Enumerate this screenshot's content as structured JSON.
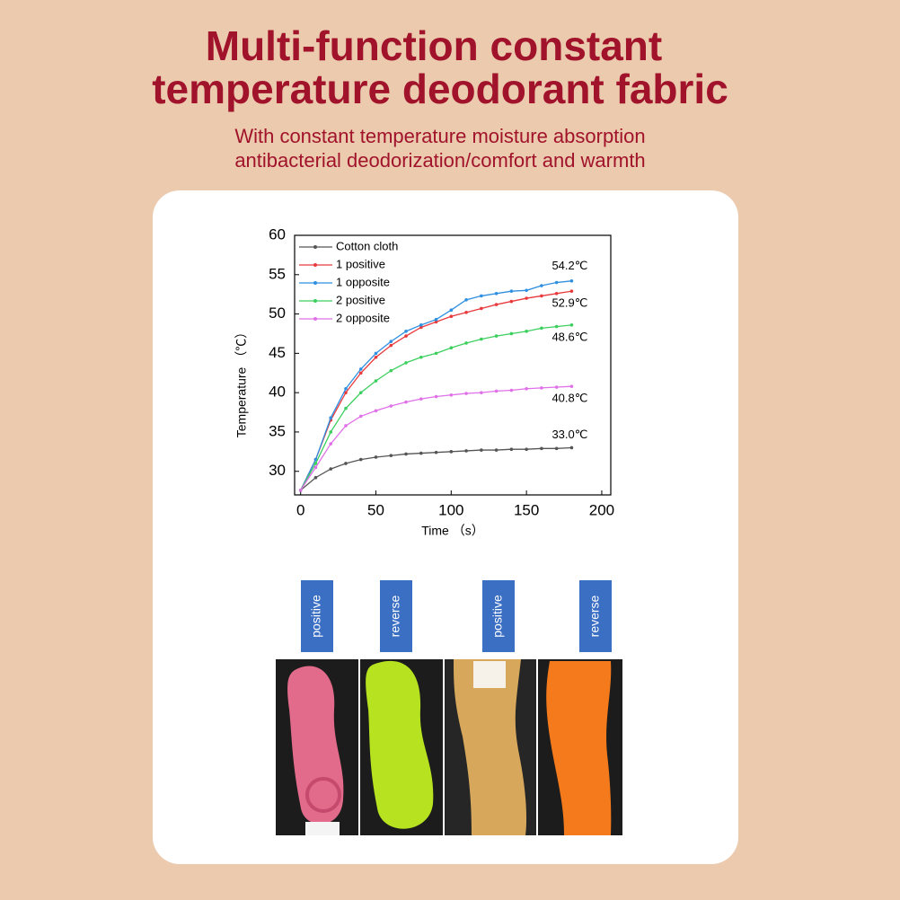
{
  "header": {
    "title": [
      "Multi-function constant",
      "temperature deodorant fabric"
    ],
    "subtitle": [
      "With constant temperature moisture absorption",
      "antibacterial deodorization/comfort and warmth"
    ]
  },
  "chart_data": {
    "type": "line",
    "x_label": "Time （s）",
    "y_label": "Temperature （℃）",
    "x": [
      0,
      10,
      20,
      30,
      40,
      50,
      60,
      70,
      80,
      90,
      100,
      110,
      120,
      130,
      140,
      150,
      160,
      170,
      180
    ],
    "series": [
      {
        "name": "Cotton cloth",
        "color": "#555555",
        "end_label": "33.0℃",
        "values": [
          27.6,
          29.2,
          30.3,
          31.0,
          31.5,
          31.8,
          32.0,
          32.2,
          32.3,
          32.4,
          32.5,
          32.6,
          32.7,
          32.7,
          32.8,
          32.8,
          32.9,
          32.9,
          33.0
        ]
      },
      {
        "name": "1 positive",
        "color": "#e8393c",
        "end_label": "52.9℃",
        "values": [
          27.6,
          31.5,
          36.5,
          40.0,
          42.5,
          44.5,
          46.0,
          47.2,
          48.3,
          49.0,
          49.7,
          50.2,
          50.7,
          51.2,
          51.6,
          52.0,
          52.3,
          52.6,
          52.9
        ]
      },
      {
        "name": "1 opposite",
        "color": "#2f8fe0",
        "end_label": "54.2℃",
        "values": [
          27.6,
          31.5,
          36.8,
          40.5,
          43.0,
          45.0,
          46.5,
          47.8,
          48.6,
          49.3,
          50.5,
          51.8,
          52.3,
          52.6,
          52.9,
          53.0,
          53.6,
          54.0,
          54.2
        ]
      },
      {
        "name": "2 positive",
        "color": "#3ccf5e",
        "end_label": "48.6℃",
        "values": [
          27.6,
          31.0,
          35.0,
          38.0,
          40.0,
          41.5,
          42.8,
          43.8,
          44.5,
          45.0,
          45.7,
          46.3,
          46.8,
          47.2,
          47.5,
          47.8,
          48.2,
          48.4,
          48.6
        ]
      },
      {
        "name": "2 opposite",
        "color": "#e070e8",
        "end_label": "40.8℃",
        "values": [
          27.6,
          30.5,
          33.5,
          35.8,
          37.0,
          37.7,
          38.3,
          38.8,
          39.2,
          39.5,
          39.7,
          39.9,
          40.0,
          40.2,
          40.3,
          40.5,
          40.6,
          40.7,
          40.8
        ]
      }
    ],
    "xlim": [
      -4,
      206
    ],
    "ylim": [
      27,
      60
    ],
    "xticks": [
      0,
      50,
      100,
      150,
      200
    ],
    "yticks": [
      30,
      35,
      40,
      45,
      50,
      55,
      60
    ],
    "legend": "upper-left"
  },
  "samples": {
    "labels": [
      "positive",
      "reverse",
      "positive",
      "reverse"
    ]
  }
}
